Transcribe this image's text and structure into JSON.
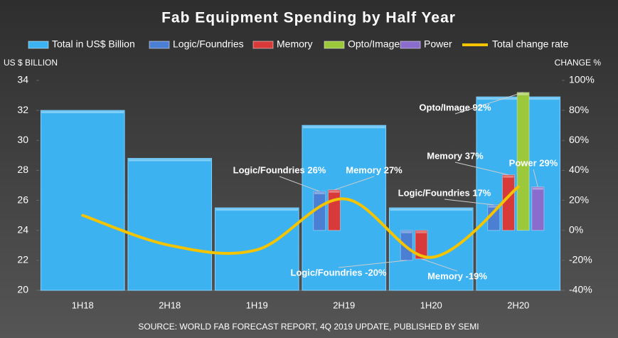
{
  "chart_data": {
    "type": "bar",
    "title": "Fab Equipment Spending by Half Year",
    "y_label": "US $ BILLION",
    "y2_label": "CHANGE %",
    "source": "SOURCE: WORLD FAB FORECAST REPORT, 4Q 2019 UPDATE, PUBLISHED BY SEMI",
    "categories": [
      "1H18",
      "2H18",
      "1H19",
      "2H19",
      "1H20",
      "2H20"
    ],
    "ylim": [
      20,
      34
    ],
    "yticks": [
      20,
      22,
      24,
      26,
      28,
      30,
      32,
      34
    ],
    "y2lim": [
      -40,
      100
    ],
    "y2ticks": [
      {
        "value": -40,
        "label": "-40%"
      },
      {
        "value": -20,
        "label": "-20%"
      },
      {
        "value": 0,
        "label": "0%"
      },
      {
        "value": 20,
        "label": "20%"
      },
      {
        "value": 40,
        "label": "40%"
      },
      {
        "value": 60,
        "label": "60%"
      },
      {
        "value": 80,
        "label": "80%"
      },
      {
        "value": 100,
        "label": "100%"
      }
    ],
    "series": [
      {
        "name": "Total in US$ Billion",
        "color": "#3cb2f0",
        "values": [
          32.0,
          28.8,
          25.5,
          31.0,
          25.5,
          32.9
        ]
      },
      {
        "name": "Logic/Foundries",
        "color": "#4a7fd4",
        "axis": "y2",
        "values": [
          null,
          null,
          null,
          26,
          -20,
          17
        ],
        "value_labels": [
          null,
          null,
          null,
          "Logic/Foundries 26%",
          "Logic/Foundries -20%",
          "Logic/Foundries 17%"
        ]
      },
      {
        "name": "Memory",
        "color": "#d83a3a",
        "axis": "y2",
        "values": [
          null,
          null,
          null,
          27,
          -19,
          37
        ],
        "value_labels": [
          null,
          null,
          null,
          "Memory 27%",
          "Memory -19%",
          "Memory 37%"
        ]
      },
      {
        "name": "Opto/Image",
        "color": "#9cc83c",
        "axis": "y2",
        "values": [
          null,
          null,
          null,
          null,
          null,
          92
        ],
        "value_labels": [
          null,
          null,
          null,
          null,
          null,
          "Opto/Image 92%"
        ]
      },
      {
        "name": "Power",
        "color": "#8a6ccc",
        "axis": "y2",
        "values": [
          null,
          null,
          null,
          null,
          null,
          29
        ],
        "value_labels": [
          null,
          null,
          null,
          null,
          null,
          "Power 29%"
        ]
      },
      {
        "name": "Total change rate",
        "type": "line",
        "color": "#f5c400",
        "axis": "y2",
        "values": [
          10,
          -10,
          -13,
          21,
          -18,
          29
        ]
      }
    ]
  }
}
